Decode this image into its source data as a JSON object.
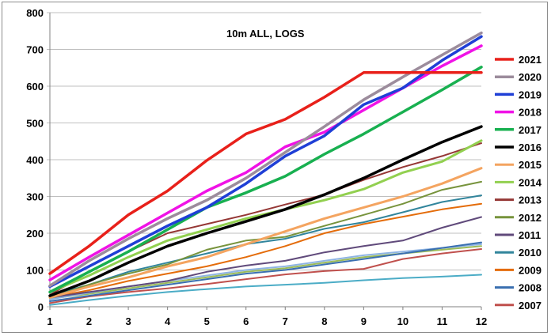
{
  "chart_data": {
    "type": "line",
    "title": "10m ALL, LOGS",
    "xlabel": "",
    "ylabel": "",
    "x": [
      1,
      2,
      3,
      4,
      5,
      6,
      7,
      8,
      9,
      10,
      11,
      12
    ],
    "ylim": [
      0,
      800
    ],
    "yticks": [
      0,
      100,
      200,
      300,
      400,
      500,
      600,
      700,
      800
    ],
    "grid": "horizontal",
    "legend_position": "right",
    "series": [
      {
        "name": "2021",
        "color": "#e8201a",
        "width": 3.5,
        "values": [
          90,
          165,
          250,
          315,
          398,
          470,
          510,
          570,
          637,
          637,
          637,
          637
        ]
      },
      {
        "name": "2020",
        "color": "#9c8c9c",
        "width": 3.5,
        "values": [
          57,
          125,
          185,
          240,
          290,
          350,
          420,
          490,
          563,
          625,
          685,
          745
        ]
      },
      {
        "name": "2019",
        "color": "#1f3fd6",
        "width": 3.5,
        "values": [
          55,
          110,
          165,
          220,
          270,
          335,
          410,
          465,
          550,
          595,
          670,
          735
        ]
      },
      {
        "name": "2018",
        "color": "#f012e6",
        "width": 3.5,
        "values": [
          73,
          135,
          195,
          255,
          315,
          365,
          435,
          475,
          535,
          595,
          655,
          710
        ]
      },
      {
        "name": "2017",
        "color": "#18b050",
        "width": 3.5,
        "values": [
          40,
          95,
          150,
          210,
          270,
          310,
          355,
          415,
          470,
          530,
          590,
          652
        ]
      },
      {
        "name": "2016",
        "color": "#000000",
        "width": 3.5,
        "values": [
          30,
          70,
          120,
          165,
          200,
          232,
          265,
          305,
          350,
          400,
          448,
          490
        ]
      },
      {
        "name": "2015",
        "color": "#f4a460",
        "width": 3,
        "values": [
          25,
          55,
          80,
          110,
          135,
          170,
          205,
          240,
          270,
          300,
          335,
          377
        ]
      },
      {
        "name": "2014",
        "color": "#92d050",
        "width": 3,
        "values": [
          40,
          85,
          135,
          180,
          210,
          240,
          265,
          290,
          320,
          365,
          395,
          452
        ]
      },
      {
        "name": "2013",
        "color": "#953735",
        "width": 2,
        "values": [
          32,
          95,
          150,
          200,
          225,
          250,
          278,
          305,
          345,
          380,
          410,
          445
        ]
      },
      {
        "name": "2012",
        "color": "#77933c",
        "width": 2,
        "values": [
          25,
          60,
          90,
          115,
          155,
          180,
          190,
          220,
          250,
          280,
          318,
          340
        ]
      },
      {
        "name": "2011",
        "color": "#604a7b",
        "width": 2,
        "values": [
          25,
          40,
          55,
          70,
          95,
          112,
          125,
          148,
          165,
          180,
          215,
          244
        ]
      },
      {
        "name": "2010",
        "color": "#31859c",
        "width": 2,
        "values": [
          30,
          60,
          95,
          120,
          145,
          170,
          185,
          212,
          230,
          257,
          285,
          303
        ]
      },
      {
        "name": "2009",
        "color": "#e46c0a",
        "width": 2,
        "values": [
          25,
          45,
          70,
          90,
          110,
          135,
          165,
          200,
          225,
          245,
          265,
          280
        ]
      },
      {
        "name": "2008",
        "color": "#3a6fb0",
        "width": 2,
        "values": [
          15,
          30,
          45,
          60,
          75,
          90,
          100,
          115,
          130,
          145,
          160,
          175
        ]
      },
      {
        "name": "2007",
        "color": "#c0504d",
        "width": 2,
        "values": [
          10,
          28,
          40,
          50,
          62,
          75,
          88,
          97,
          103,
          130,
          145,
          157
        ]
      },
      {
        "name": "",
        "color": "#4bacc6",
        "width": 2,
        "values": [
          5,
          18,
          30,
          40,
          48,
          55,
          60,
          65,
          72,
          78,
          82,
          87
        ]
      },
      {
        "name": "",
        "color": "#8eb4e3",
        "width": 2,
        "values": [
          20,
          38,
          55,
          70,
          85,
          100,
          110,
          125,
          140,
          150,
          160,
          170
        ]
      },
      {
        "name": "",
        "color": "#9bbb59",
        "width": 2,
        "values": [
          22,
          35,
          50,
          65,
          80,
          95,
          105,
          120,
          135,
          145,
          155,
          165
        ]
      }
    ]
  }
}
